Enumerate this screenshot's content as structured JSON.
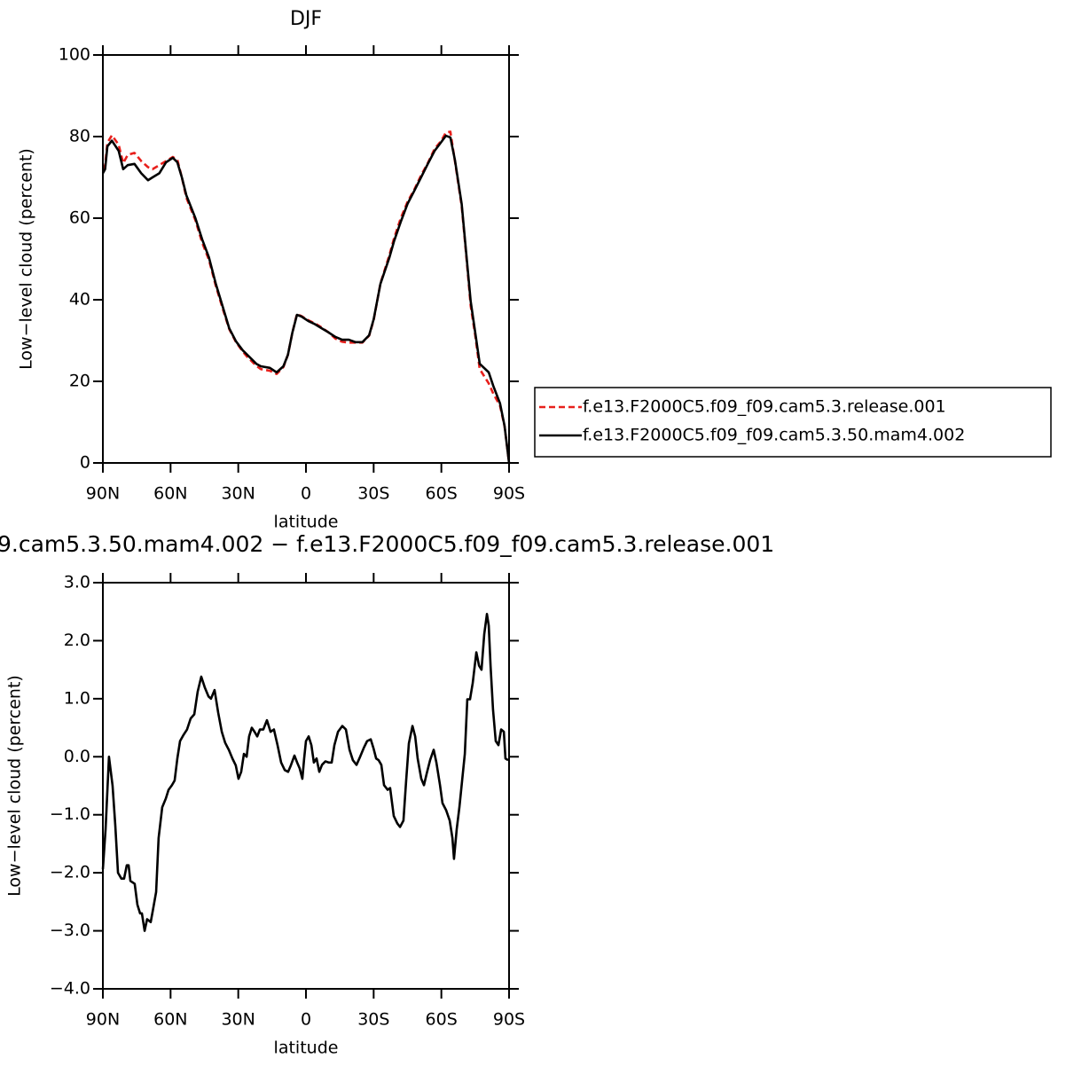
{
  "chart_data": [
    {
      "type": "line",
      "title": "DJF",
      "x_label": "latitude",
      "y_label": "Low−level cloud (percent)",
      "x": [
        90,
        89,
        88,
        86,
        83,
        81,
        79,
        76,
        73,
        70,
        68,
        65,
        62,
        59,
        57,
        55,
        53,
        49,
        46,
        43,
        40,
        37,
        34,
        31,
        28,
        26,
        22,
        20,
        16,
        13,
        10,
        8,
        6,
        4,
        2,
        -1,
        -4,
        -7,
        -10,
        -13,
        -16,
        -19,
        -22,
        -25,
        -28,
        -30,
        -33,
        -37,
        -39,
        -42,
        -45,
        -48,
        -51,
        -54,
        -57,
        -60,
        -62,
        -64,
        -66,
        -69,
        -71,
        -73,
        -75,
        -77,
        -81,
        -83,
        -86,
        -88,
        -90
      ],
      "xlim": [
        90,
        -90
      ],
      "xticks": [
        {
          "value": 90,
          "label": "90N"
        },
        {
          "value": 60,
          "label": "60N"
        },
        {
          "value": 30,
          "label": "30N"
        },
        0,
        {
          "value": -30,
          "label": "30S"
        },
        {
          "value": -60,
          "label": "60S"
        },
        {
          "value": -90,
          "label": "90S"
        }
      ],
      "ylim": [
        0,
        100
      ],
      "yticks": [
        0,
        20,
        40,
        60,
        80,
        100
      ],
      "legend": "right",
      "series": [
        {
          "name": "f.e13.F2000C5.f09_f09.cam5.3.release.001",
          "color": "#e8201c",
          "dashed": true,
          "values": [
            72,
            73,
            78.5,
            80.3,
            78,
            73.5,
            75.5,
            76,
            74,
            72.5,
            72,
            73,
            74,
            75,
            74.3,
            70,
            65,
            59.5,
            54,
            49.8,
            43.5,
            38,
            32.8,
            29.6,
            27.3,
            26,
            23.8,
            23,
            22.6,
            21.8,
            23.5,
            26.5,
            32,
            36.5,
            36,
            35,
            34.2,
            33.2,
            32,
            30.5,
            29.7,
            29.5,
            29.5,
            29.5,
            31.2,
            35,
            44,
            51,
            55,
            60,
            64,
            67,
            70.5,
            73.5,
            77,
            79,
            81,
            81.2,
            74,
            63,
            51,
            38.5,
            31.3,
            23,
            19.5,
            17,
            14,
            9,
            0
          ]
        },
        {
          "name": "f.e13.F2000C5.f09_f09.cam5.3.50.mam4.002",
          "color": "#000000",
          "dashed": false,
          "values": [
            71,
            72,
            77.6,
            79,
            76.5,
            72,
            73,
            73.3,
            71,
            69.3,
            70,
            71,
            73.7,
            74.8,
            73.7,
            70,
            65.6,
            60,
            54.8,
            50.4,
            44,
            38.5,
            33,
            29.8,
            27.6,
            26.5,
            24.3,
            23.7,
            23.3,
            22.2,
            23.7,
            26.5,
            32,
            36.3,
            35.9,
            34.8,
            34,
            33,
            32,
            30.9,
            30.2,
            30.2,
            29.6,
            29.6,
            31.3,
            35.2,
            43.9,
            50.4,
            54.3,
            59.1,
            63.5,
            66.7,
            70,
            73.3,
            76.5,
            78.7,
            80.2,
            79.8,
            74.3,
            63.5,
            51.5,
            39.6,
            32,
            24.3,
            22.2,
            18.9,
            14.6,
            9.1,
            0
          ]
        }
      ]
    },
    {
      "type": "line",
      "title": "9.cam5.3.50.mam4.002 − f.e13.F2000C5.f09_f09.cam5.3.release.001",
      "x_label": "latitude",
      "y_label": "Low−level cloud (percent)",
      "x": [
        90,
        88.8,
        87.3,
        85.7,
        84.5,
        83.3,
        81.8,
        80.6,
        79.4,
        78.6,
        77.8,
        75.9,
        74.7,
        73.5,
        72.7,
        71.5,
        70.4,
        68.8,
        68.0,
        66.4,
        65.3,
        63.7,
        62.1,
        60.9,
        59.4,
        58.2,
        57.0,
        55.8,
        54.2,
        52.7,
        51.1,
        49.5,
        48.0,
        46.4,
        44.8,
        43.2,
        42.1,
        40.5,
        38.9,
        37.3,
        35.8,
        34.2,
        32.6,
        31.1,
        29.9,
        28.7,
        27.5,
        26.3,
        25.2,
        24.0,
        22.8,
        21.6,
        20.4,
        18.9,
        17.3,
        15.7,
        14.2,
        12.6,
        11.0,
        9.4,
        7.9,
        6.7,
        5.1,
        3.9,
        2.8,
        1.6,
        0.8,
        0,
        -1.2,
        -2.4,
        -3.5,
        -4.7,
        -5.9,
        -7.1,
        -8.6,
        -10.2,
        -11.4,
        -12.6,
        -14.2,
        -16.1,
        -17.7,
        -19.3,
        -20.8,
        -22.4,
        -24.0,
        -25.6,
        -27.1,
        -28.7,
        -29.9,
        -31.1,
        -32.2,
        -33.4,
        -34.6,
        -36.2,
        -37.3,
        -38.9,
        -40.5,
        -41.7,
        -43.2,
        -44.4,
        -45.6,
        -47.2,
        -48.4,
        -49.5,
        -51.1,
        -52.3,
        -53.5,
        -55.0,
        -56.6,
        -57.8,
        -59.4,
        -60.5,
        -62.1,
        -63.7,
        -64.9,
        -65.6,
        -66.8,
        -68.0,
        -69.2,
        -70.4,
        -71.5,
        -72.7,
        -73.9,
        -75.5,
        -76.7,
        -77.8,
        -79.0,
        -80.2,
        -81.0,
        -81.8,
        -82.9,
        -84.1,
        -85.3,
        -86.5,
        -87.7,
        -88.4,
        -89.6
      ],
      "xlim": [
        90,
        -90
      ],
      "xticks": [
        {
          "value": 90,
          "label": "90N"
        },
        {
          "value": 60,
          "label": "60N"
        },
        {
          "value": 30,
          "label": "30N"
        },
        0,
        {
          "value": -30,
          "label": "30S"
        },
        {
          "value": -60,
          "label": "60S"
        },
        {
          "value": -90,
          "label": "90S"
        }
      ],
      "ylim": [
        -4,
        3
      ],
      "yticks": [
        {
          "value": -4,
          "label": "−4.0"
        },
        {
          "value": -3,
          "label": "−3.0"
        },
        {
          "value": -2,
          "label": "−2.0"
        },
        {
          "value": -1,
          "label": "−1.0"
        },
        {
          "value": 0,
          "label": "0.0"
        },
        {
          "value": 1,
          "label": "1.0"
        },
        {
          "value": 2,
          "label": "2.0"
        },
        {
          "value": 3,
          "label": "3.0"
        }
      ],
      "series": [
        {
          "color": "#000000",
          "dashed": false,
          "values": [
            -1.94,
            -1.25,
            0.0,
            -0.5,
            -1.18,
            -2.0,
            -2.1,
            -2.1,
            -1.87,
            -1.87,
            -2.14,
            -2.19,
            -2.55,
            -2.7,
            -2.7,
            -3.0,
            -2.8,
            -2.85,
            -2.68,
            -2.33,
            -1.4,
            -0.87,
            -0.72,
            -0.57,
            -0.49,
            -0.41,
            -0.03,
            0.27,
            0.38,
            0.47,
            0.66,
            0.73,
            1.12,
            1.38,
            1.19,
            1.04,
            1.0,
            1.15,
            0.76,
            0.43,
            0.24,
            0.12,
            -0.03,
            -0.15,
            -0.38,
            -0.26,
            0.05,
            0.0,
            0.35,
            0.5,
            0.43,
            0.35,
            0.47,
            0.47,
            0.63,
            0.43,
            0.47,
            0.2,
            -0.1,
            -0.23,
            -0.26,
            -0.15,
            0.02,
            -0.1,
            -0.2,
            -0.38,
            -0.03,
            0.27,
            0.35,
            0.2,
            -0.1,
            -0.03,
            -0.26,
            -0.14,
            -0.08,
            -0.1,
            -0.1,
            0.2,
            0.43,
            0.53,
            0.47,
            0.12,
            -0.06,
            -0.14,
            0.0,
            0.15,
            0.27,
            0.3,
            0.15,
            -0.03,
            -0.06,
            -0.14,
            -0.49,
            -0.57,
            -0.54,
            -1.02,
            -1.15,
            -1.21,
            -1.1,
            -0.41,
            0.23,
            0.53,
            0.35,
            -0.03,
            -0.38,
            -0.49,
            -0.29,
            -0.06,
            0.12,
            -0.1,
            -0.49,
            -0.8,
            -0.92,
            -1.1,
            -1.4,
            -1.76,
            -1.25,
            -0.87,
            -0.41,
            0.05,
            0.99,
            0.99,
            1.27,
            1.8,
            1.57,
            1.5,
            2.11,
            2.46,
            2.26,
            1.57,
            0.81,
            0.27,
            0.2,
            0.47,
            0.43,
            -0.03,
            -0.06
          ]
        }
      ]
    }
  ]
}
